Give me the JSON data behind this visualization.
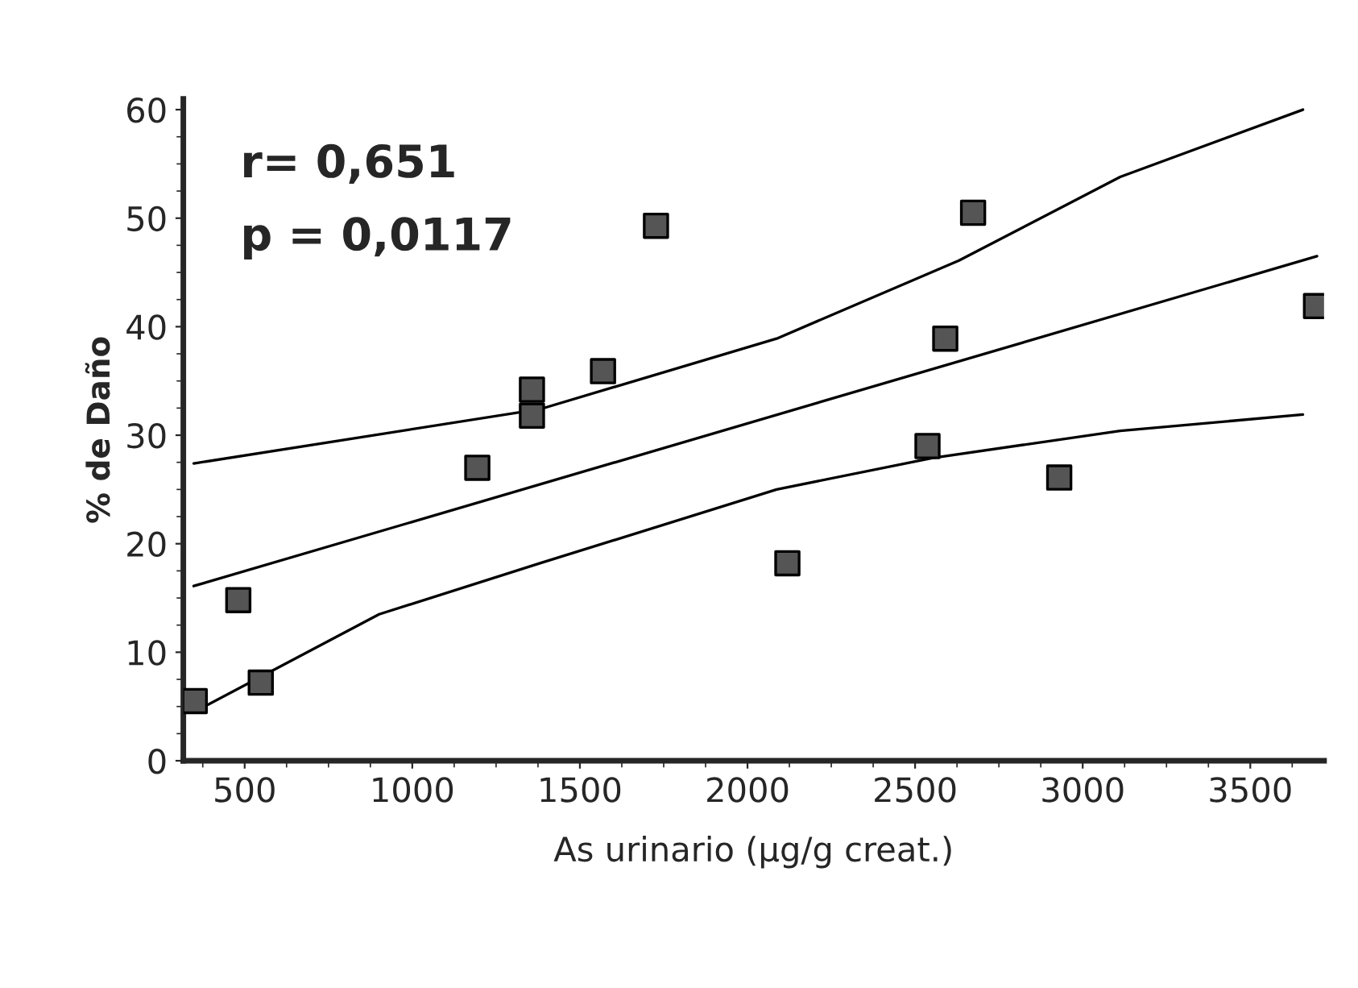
{
  "chart_data": {
    "type": "scatter",
    "xlabel": "As urinario (µg/g creat.)",
    "ylabel": "% de Daño",
    "xlim": [
      317,
      3720
    ],
    "ylim": [
      0,
      61
    ],
    "xticks": [
      500,
      1000,
      1500,
      2000,
      2500,
      3000,
      3500
    ],
    "yticks": [
      0,
      10,
      20,
      30,
      40,
      50,
      60
    ],
    "grid": false,
    "legend": false,
    "marker": "square",
    "annotations": [
      "r= 0,651",
      "p = 0,0117"
    ],
    "series": [
      {
        "color": "#555555",
        "x": [
          351,
          481,
          548,
          1194,
          1357,
          1357,
          1569,
          1727,
          2119,
          2537,
          2590,
          2673,
          2930,
          3696
        ],
        "values": [
          5.5,
          14.8,
          7.2,
          27.0,
          34.2,
          31.8,
          35.9,
          49.3,
          18.2,
          29.0,
          38.9,
          50.5,
          26.1,
          41.9
        ]
      },
      {
        "type": "line",
        "color": "#000000",
        "marker": "none",
        "x": [
          348,
          3699
        ],
        "values": [
          16.1,
          46.5
        ]
      },
      {
        "type": "line",
        "color": "#000000",
        "marker": "none",
        "x": [
          348,
          1381,
          2087,
          2631,
          3112,
          3657
        ],
        "values": [
          27.4,
          32.4,
          38.9,
          46.1,
          53.8,
          60.0
        ]
      },
      {
        "type": "line",
        "color": "#000000",
        "marker": "none",
        "x": [
          356,
          901,
          1381,
          2087,
          2551,
          3112,
          3657
        ],
        "values": [
          4.6,
          13.5,
          18.2,
          25.0,
          27.9,
          30.4,
          31.9
        ]
      }
    ]
  }
}
